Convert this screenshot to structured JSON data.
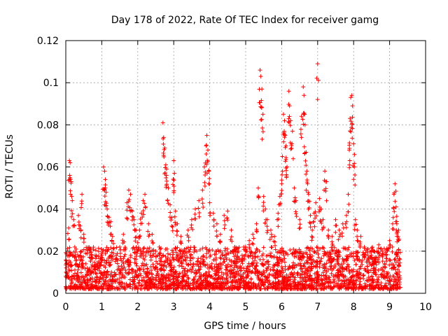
{
  "chart_data": {
    "type": "scatter",
    "title": "Day 178 of 2022, Rate Of TEC Index for receiver gamg",
    "xlabel": "GPS time / hours",
    "ylabel": "ROTI / TECUs",
    "xlim": [
      0,
      10
    ],
    "ylim": [
      0,
      0.12
    ],
    "xticks": [
      "0",
      "1",
      "2",
      "3",
      "4",
      "5",
      "6",
      "7",
      "8",
      "9",
      "10"
    ],
    "yticks": [
      "0",
      "0.02",
      "0.04",
      "0.06",
      "0.08",
      "0.1",
      "0.12"
    ],
    "grid": true,
    "marker": "+",
    "color": "#ff0000",
    "series": [
      {
        "name": "ROTI",
        "points": [
          [
            0.05,
            0.009
          ],
          [
            0.08,
            0.031
          ],
          [
            0.1,
            0.063
          ],
          [
            0.12,
            0.062
          ],
          [
            0.15,
            0.053
          ],
          [
            0.18,
            0.044
          ],
          [
            0.22,
            0.035
          ],
          [
            0.25,
            0.022
          ],
          [
            0.3,
            0.016
          ],
          [
            0.35,
            0.037
          ],
          [
            0.4,
            0.032
          ],
          [
            0.45,
            0.047
          ],
          [
            0.5,
            0.028
          ],
          [
            0.6,
            0.012
          ],
          [
            0.7,
            0.018
          ],
          [
            0.8,
            0.013
          ],
          [
            0.9,
            0.015
          ],
          [
            1.0,
            0.018
          ],
          [
            1.05,
            0.06
          ],
          [
            1.08,
            0.058
          ],
          [
            1.1,
            0.05
          ],
          [
            1.12,
            0.048
          ],
          [
            1.15,
            0.04
          ],
          [
            1.2,
            0.036
          ],
          [
            1.25,
            0.034
          ],
          [
            1.3,
            0.027
          ],
          [
            1.4,
            0.018
          ],
          [
            1.5,
            0.022
          ],
          [
            1.6,
            0.028
          ],
          [
            1.7,
            0.043
          ],
          [
            1.75,
            0.049
          ],
          [
            1.8,
            0.047
          ],
          [
            1.85,
            0.039
          ],
          [
            1.9,
            0.035
          ],
          [
            1.95,
            0.03
          ],
          [
            2.0,
            0.024
          ],
          [
            2.05,
            0.03
          ],
          [
            2.1,
            0.038
          ],
          [
            2.15,
            0.044
          ],
          [
            2.2,
            0.047
          ],
          [
            2.3,
            0.033
          ],
          [
            2.4,
            0.028
          ],
          [
            2.5,
            0.02
          ],
          [
            2.6,
            0.022
          ],
          [
            2.7,
            0.081
          ],
          [
            2.72,
            0.074
          ],
          [
            2.75,
            0.069
          ],
          [
            2.78,
            0.061
          ],
          [
            2.8,
            0.059
          ],
          [
            2.85,
            0.05
          ],
          [
            2.9,
            0.042
          ],
          [
            2.95,
            0.036
          ],
          [
            3.0,
            0.063
          ],
          [
            3.02,
            0.057
          ],
          [
            3.05,
            0.039
          ],
          [
            3.1,
            0.033
          ],
          [
            3.2,
            0.027
          ],
          [
            3.3,
            0.021
          ],
          [
            3.4,
            0.03
          ],
          [
            3.5,
            0.035
          ],
          [
            3.6,
            0.04
          ],
          [
            3.7,
            0.044
          ],
          [
            3.8,
            0.049
          ],
          [
            3.85,
            0.06
          ],
          [
            3.9,
            0.07
          ],
          [
            3.92,
            0.075
          ],
          [
            3.95,
            0.068
          ],
          [
            3.98,
            0.058
          ],
          [
            4.0,
            0.043
          ],
          [
            4.1,
            0.038
          ],
          [
            4.2,
            0.033
          ],
          [
            4.3,
            0.028
          ],
          [
            4.4,
            0.037
          ],
          [
            4.5,
            0.039
          ],
          [
            4.6,
            0.03
          ],
          [
            4.7,
            0.022
          ],
          [
            4.8,
            0.02
          ],
          [
            4.9,
            0.018
          ],
          [
            5.0,
            0.022
          ],
          [
            5.1,
            0.025
          ],
          [
            5.2,
            0.028
          ],
          [
            5.3,
            0.033
          ],
          [
            5.35,
            0.05
          ],
          [
            5.4,
            0.106
          ],
          [
            5.42,
            0.103
          ],
          [
            5.45,
            0.097
          ],
          [
            5.48,
            0.085
          ],
          [
            5.5,
            0.046
          ],
          [
            5.55,
            0.04
          ],
          [
            5.6,
            0.035
          ],
          [
            5.7,
            0.03
          ],
          [
            5.8,
            0.027
          ],
          [
            5.9,
            0.038
          ],
          [
            5.95,
            0.046
          ],
          [
            6.0,
            0.052
          ],
          [
            6.02,
            0.065
          ],
          [
            6.05,
            0.085
          ],
          [
            6.08,
            0.082
          ],
          [
            6.1,
            0.075
          ],
          [
            6.12,
            0.07
          ],
          [
            6.15,
            0.06
          ],
          [
            6.2,
            0.096
          ],
          [
            6.22,
            0.089
          ],
          [
            6.25,
            0.082
          ],
          [
            6.3,
            0.077
          ],
          [
            6.35,
            0.05
          ],
          [
            6.4,
            0.044
          ],
          [
            6.5,
            0.035
          ],
          [
            6.55,
            0.084
          ],
          [
            6.6,
            0.098
          ],
          [
            6.62,
            0.094
          ],
          [
            6.65,
            0.08
          ],
          [
            6.68,
            0.067
          ],
          [
            6.7,
            0.058
          ],
          [
            6.72,
            0.052
          ],
          [
            6.75,
            0.047
          ],
          [
            6.8,
            0.037
          ],
          [
            6.85,
            0.03
          ],
          [
            6.9,
            0.038
          ],
          [
            6.95,
            0.043
          ],
          [
            7.0,
            0.109
          ],
          [
            7.05,
            0.045
          ],
          [
            7.1,
            0.04
          ],
          [
            7.15,
            0.035
          ],
          [
            7.2,
            0.058
          ],
          [
            7.25,
            0.053
          ],
          [
            7.3,
            0.03
          ],
          [
            7.4,
            0.027
          ],
          [
            7.5,
            0.035
          ],
          [
            7.6,
            0.03
          ],
          [
            7.7,
            0.033
          ],
          [
            7.8,
            0.037
          ],
          [
            7.85,
            0.047
          ],
          [
            7.88,
            0.068
          ],
          [
            7.9,
            0.083
          ],
          [
            7.92,
            0.093
          ],
          [
            7.95,
            0.094
          ],
          [
            7.97,
            0.089
          ],
          [
            8.0,
            0.071
          ],
          [
            8.02,
            0.06
          ],
          [
            8.05,
            0.035
          ],
          [
            8.1,
            0.03
          ],
          [
            8.2,
            0.027
          ],
          [
            8.3,
            0.022
          ],
          [
            8.4,
            0.018
          ],
          [
            8.5,
            0.02
          ],
          [
            8.6,
            0.017
          ],
          [
            8.7,
            0.023
          ],
          [
            8.8,
            0.02
          ],
          [
            8.9,
            0.018
          ],
          [
            9.0,
            0.025
          ],
          [
            9.1,
            0.036
          ],
          [
            9.12,
            0.047
          ],
          [
            9.15,
            0.052
          ],
          [
            9.18,
            0.041
          ],
          [
            9.2,
            0.033
          ],
          [
            9.22,
            0.029
          ],
          [
            9.25,
            0.03
          ]
        ]
      }
    ],
    "background_band": {
      "description": "dense cluster of ROTI points across the observation window",
      "x_start": 0.0,
      "x_end": 9.3,
      "y_low": 0.002,
      "y_high": 0.022
    }
  }
}
